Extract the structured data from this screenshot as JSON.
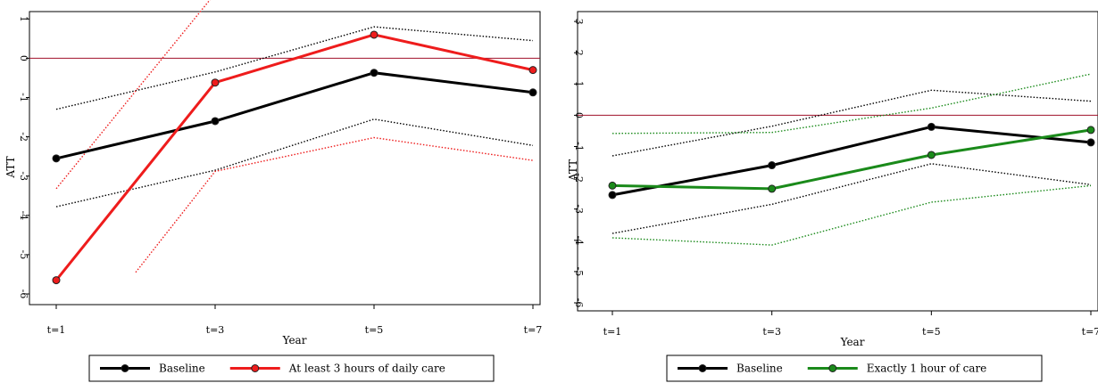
{
  "chart_data": [
    {
      "type": "line",
      "xlabel": "Year",
      "ylabel": "ATT",
      "categories": [
        "t=1",
        "t=3",
        "t=5",
        "t=7"
      ],
      "x": [
        1,
        3,
        5,
        7
      ],
      "ylim": [
        -6,
        3
      ],
      "yticks": [
        -6,
        -5,
        -4,
        -3,
        -2,
        -1,
        0,
        1,
        2,
        3
      ],
      "ytick_labels": [
        "-6",
        "-5",
        "-4",
        "-3",
        "-2",
        "-1",
        "0",
        "1",
        "2",
        "3"
      ],
      "reference_line": {
        "y": 0,
        "color": "#a0102a"
      },
      "legend_position": "bottom",
      "series": [
        {
          "name": "Baseline",
          "color": "#000000",
          "values": [
            -2.55,
            -1.6,
            -0.37,
            -0.87
          ],
          "ci_lower": [
            -3.78,
            -2.85,
            -1.55,
            -2.22
          ],
          "ci_upper": [
            -1.3,
            -0.35,
            0.8,
            0.45
          ]
        },
        {
          "name": "At least 3 hours of daily care",
          "color": "#ee1c1c",
          "values": [
            -5.65,
            -0.62,
            0.6,
            -0.3
          ],
          "ci_lower": [
            null,
            -2.88,
            -2.02,
            -2.6
          ],
          "ci_upper": [
            -3.32,
            1.65,
            3.22,
            1.98
          ],
          "ci_lower_start": {
            "x": 2.0,
            "y": -5.45
          }
        }
      ]
    },
    {
      "type": "line",
      "xlabel": "Year",
      "ylabel": "ATT",
      "categories": [
        "t=1",
        "t=3",
        "t=5",
        "t=7"
      ],
      "x": [
        1,
        3,
        5,
        7
      ],
      "ylim": [
        -6,
        3
      ],
      "yticks": [
        -6,
        -5,
        -4,
        -3,
        -2,
        -1,
        0,
        1,
        2,
        3
      ],
      "ytick_labels": [
        "-6",
        "-5",
        "-4",
        "-3",
        "-2",
        "-1",
        "0",
        "1",
        "2",
        "3"
      ],
      "reference_line": {
        "y": 0,
        "color": "#a0102a"
      },
      "legend_position": "bottom",
      "series": [
        {
          "name": "Baseline",
          "color": "#000000",
          "values": [
            -2.55,
            -1.6,
            -0.37,
            -0.87
          ],
          "ci_lower": [
            -3.78,
            -2.85,
            -1.55,
            -2.22
          ],
          "ci_upper": [
            -1.3,
            -0.35,
            0.8,
            0.45
          ]
        },
        {
          "name": "Exactly 1 hour of care",
          "color": "#1a8a1a",
          "values": [
            -2.25,
            -2.35,
            -1.27,
            -0.47
          ],
          "ci_lower": [
            -3.92,
            -4.15,
            -2.78,
            -2.25
          ],
          "ci_upper": [
            -0.58,
            -0.55,
            0.23,
            1.32
          ]
        }
      ]
    }
  ]
}
